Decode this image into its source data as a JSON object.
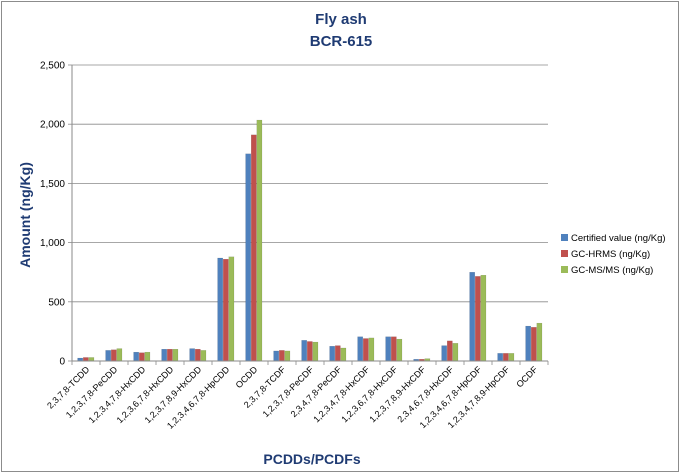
{
  "chart_data": {
    "type": "bar",
    "title": "Fly ash",
    "subtitle": "BCR-615",
    "xlabel": "PCDDs/PCDFs",
    "ylabel": "Amount (ng/Kg)",
    "ylim": [
      0,
      2500
    ],
    "yticks": [
      0,
      500,
      1000,
      1500,
      2000,
      2500
    ],
    "ytick_labels": [
      "0",
      "500",
      "1,000",
      "1,500",
      "2,000",
      "2,500"
    ],
    "grid": true,
    "legend_position": "right",
    "categories": [
      "2,3,7,8-TCDD",
      "1,2,3,7,8-PeCDD",
      "1,2,3,4,7,8-HxCDD",
      "1,2,3,6,7,8-HxCDD",
      "1,2,3,7,8,9-HxCDD",
      "1,2,3,4,6,7,8-HpCDD",
      "OCDD",
      "2,3,7,8-TCDF",
      "1,2,3,7,8-PeCDF",
      "2,3,4,7,8-PeCDF",
      "1,2,3,4,7,8-HxCDF",
      "1,2,3,6,7,8-HxCDF",
      "1,2,3,7,8,9-HxCDF",
      "2,3,4,6,7,8-HxCDF",
      "1,2,3,4,6,7,8-HpCDF",
      "1,2,3,4,7,8,9-HpCDF",
      "OCDF"
    ],
    "series": [
      {
        "name": "Certified value (ng/Kg)",
        "color": "#4f81bd",
        "values": [
          25,
          90,
          75,
          100,
          105,
          870,
          1750,
          85,
          175,
          125,
          205,
          205,
          15,
          130,
          750,
          65,
          295
        ]
      },
      {
        "name": "GC-HRMS (ng/Kg)",
        "color": "#c0504d",
        "values": [
          30,
          95,
          70,
          100,
          100,
          860,
          1910,
          90,
          165,
          130,
          190,
          205,
          15,
          170,
          715,
          65,
          285
        ]
      },
      {
        "name": "GC-MS/MS (ng/Kg)",
        "color": "#9bbb59",
        "values": [
          30,
          105,
          75,
          100,
          90,
          880,
          2035,
          85,
          160,
          110,
          195,
          185,
          20,
          150,
          725,
          65,
          320
        ]
      }
    ]
  }
}
